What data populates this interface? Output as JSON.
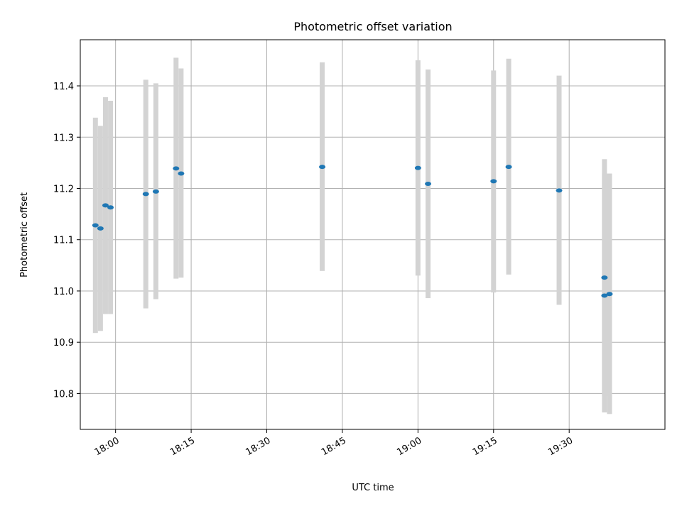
{
  "chart_data": {
    "type": "scatter",
    "title": "Photometric offset variation",
    "xlabel": "UTC time",
    "ylabel": "Photometric offset",
    "x_ticks": [
      "18:00",
      "18:15",
      "18:30",
      "18:45",
      "19:00",
      "19:15",
      "19:30"
    ],
    "y_ticks": [
      "10.8",
      "10.9",
      "11.0",
      "11.1",
      "11.2",
      "11.3",
      "11.4"
    ],
    "xlim": [
      "17:53",
      "19:49"
    ],
    "ylim": [
      10.73,
      11.49
    ],
    "grid": true,
    "colors": {
      "point": "#1f77b4",
      "errorbar": "#d3d3d3",
      "grid": "#b0b0b0"
    },
    "points": [
      {
        "x": "17:56",
        "y": 11.128,
        "err_low": 10.918,
        "err_high": 11.338
      },
      {
        "x": "17:57",
        "y": 11.122,
        "err_low": 10.922,
        "err_high": 11.322
      },
      {
        "x": "17:58",
        "y": 11.167,
        "err_low": 10.955,
        "err_high": 11.378
      },
      {
        "x": "17:59",
        "y": 11.163,
        "err_low": 10.955,
        "err_high": 11.371
      },
      {
        "x": "18:06",
        "y": 11.189,
        "err_low": 10.966,
        "err_high": 11.412
      },
      {
        "x": "18:08",
        "y": 11.194,
        "err_low": 10.984,
        "err_high": 11.405
      },
      {
        "x": "18:12",
        "y": 11.239,
        "err_low": 11.024,
        "err_high": 11.455
      },
      {
        "x": "18:13",
        "y": 11.229,
        "err_low": 11.026,
        "err_high": 11.434
      },
      {
        "x": "18:41",
        "y": 11.242,
        "err_low": 11.039,
        "err_high": 11.446
      },
      {
        "x": "19:00",
        "y": 11.24,
        "err_low": 11.03,
        "err_high": 11.45
      },
      {
        "x": "19:02",
        "y": 11.209,
        "err_low": 10.986,
        "err_high": 11.432
      },
      {
        "x": "19:15",
        "y": 11.214,
        "err_low": 10.997,
        "err_high": 11.43
      },
      {
        "x": "19:18",
        "y": 11.242,
        "err_low": 11.032,
        "err_high": 11.453
      },
      {
        "x": "19:28",
        "y": 11.196,
        "err_low": 10.973,
        "err_high": 11.42
      },
      {
        "x": "19:37",
        "y": 11.026,
        "err_low": 10.795,
        "err_high": 11.257
      },
      {
        "x": "19:37",
        "y": 10.991,
        "err_low": 10.763,
        "err_high": 11.229
      },
      {
        "x": "19:38",
        "y": 10.994,
        "err_low": 10.76,
        "err_high": 11.229
      }
    ]
  }
}
